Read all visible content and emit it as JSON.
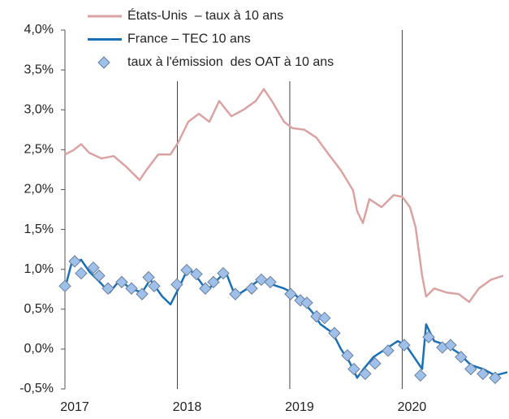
{
  "chart_data": {
    "type": "line",
    "xlim": [
      2017,
      2020.95
    ],
    "xticks": [
      2017,
      2018,
      2019,
      2020
    ],
    "ylim": [
      -0.5,
      4.0
    ],
    "yticks": [
      {
        "value": -0.5,
        "label": "-0,5%"
      },
      {
        "value": 0.0,
        "label": "0,0%"
      },
      {
        "value": 0.5,
        "label": "0,5%"
      },
      {
        "value": 1.0,
        "label": "1,0%"
      },
      {
        "value": 1.5,
        "label": "1,5%"
      },
      {
        "value": 2.0,
        "label": "2,0%"
      },
      {
        "value": 2.5,
        "label": "2,5%"
      },
      {
        "value": 3.0,
        "label": "3,0%"
      },
      {
        "value": 3.5,
        "label": "3,5%"
      },
      {
        "value": 4.0,
        "label": "4,0%"
      }
    ],
    "grid": "x",
    "legend": "top-left",
    "series": [
      {
        "name": "États-Unis  – taux à 10 ans",
        "color": "#d9a3a3",
        "mode": "line",
        "x": [
          2017.0,
          2017.072,
          2017.144,
          2017.217,
          2017.325,
          2017.433,
          2017.542,
          2017.664,
          2017.722,
          2017.83,
          2017.939,
          2018.011,
          2018.097,
          2018.191,
          2018.285,
          2018.372,
          2018.48,
          2018.588,
          2018.697,
          2018.769,
          2018.841,
          2018.949,
          2019.022,
          2019.13,
          2019.238,
          2019.347,
          2019.455,
          2019.563,
          2019.599,
          2019.65,
          2019.708,
          2019.816,
          2019.924,
          2020.0,
          2020.069,
          2020.119,
          2020.177,
          2020.213,
          2020.285,
          2020.393,
          2020.502,
          2020.596,
          2020.682,
          2020.791,
          2020.899
        ],
        "values": [
          2.44,
          2.49,
          2.57,
          2.46,
          2.39,
          2.42,
          2.29,
          2.12,
          2.24,
          2.44,
          2.44,
          2.6,
          2.85,
          2.95,
          2.85,
          3.11,
          2.92,
          3.0,
          3.11,
          3.26,
          3.11,
          2.85,
          2.77,
          2.75,
          2.65,
          2.44,
          2.24,
          1.99,
          1.73,
          1.58,
          1.88,
          1.78,
          1.93,
          1.91,
          1.78,
          1.53,
          0.92,
          0.66,
          0.76,
          0.71,
          0.69,
          0.59,
          0.76,
          0.87,
          0.92
        ]
      },
      {
        "name": "France – TEC 10 ans",
        "color": "#1b6fb5",
        "mode": "line",
        "x": [
          2017.0,
          2017.058,
          2017.144,
          2017.217,
          2017.289,
          2017.397,
          2017.491,
          2017.578,
          2017.686,
          2017.758,
          2017.866,
          2017.939,
          2018.011,
          2018.097,
          2018.191,
          2018.264,
          2018.357,
          2018.43,
          2018.516,
          2018.625,
          2018.733,
          2018.841,
          2018.949,
          2019.022,
          2019.108,
          2019.202,
          2019.274,
          2019.383,
          2019.455,
          2019.527,
          2019.599,
          2019.657,
          2019.744,
          2019.852,
          2019.96,
          2020.032,
          2020.105,
          2020.177,
          2020.213,
          2020.285,
          2020.393,
          2020.502,
          2020.61,
          2020.718,
          2020.827,
          2020.935
        ],
        "values": [
          0.76,
          1.07,
          1.12,
          0.97,
          0.87,
          0.71,
          0.87,
          0.76,
          0.71,
          0.87,
          0.66,
          0.56,
          0.76,
          1.02,
          0.87,
          0.73,
          0.87,
          0.97,
          0.66,
          0.76,
          0.87,
          0.81,
          0.76,
          0.71,
          0.61,
          0.46,
          0.31,
          0.2,
          0.0,
          -0.15,
          -0.36,
          -0.25,
          -0.1,
          0.0,
          0.1,
          0.05,
          -0.1,
          -0.25,
          0.31,
          0.1,
          0.05,
          -0.05,
          -0.2,
          -0.25,
          -0.33,
          -0.29
        ]
      },
      {
        "name": "taux à l'émission  des OAT à 10 ans",
        "color": "#9ec0ea",
        "mode": "markers",
        "x": [
          2017.0,
          2017.087,
          2017.144,
          2017.253,
          2017.303,
          2017.383,
          2017.505,
          2017.592,
          2017.686,
          2017.744,
          2017.794,
          2017.996,
          2018.083,
          2018.17,
          2018.249,
          2018.321,
          2018.408,
          2018.516,
          2018.661,
          2018.747,
          2018.827,
          2019.007,
          2019.094,
          2019.152,
          2019.238,
          2019.31,
          2019.397,
          2019.513,
          2019.57,
          2019.671,
          2019.758,
          2019.874,
          2020.018,
          2020.162,
          2020.235,
          2020.357,
          2020.43,
          2020.523,
          2020.61,
          2020.718,
          2020.827
        ],
        "values": [
          0.79,
          1.1,
          0.95,
          1.02,
          0.92,
          0.76,
          0.84,
          0.76,
          0.69,
          0.9,
          0.79,
          0.81,
          0.99,
          0.94,
          0.76,
          0.84,
          0.95,
          0.69,
          0.76,
          0.87,
          0.84,
          0.69,
          0.61,
          0.58,
          0.41,
          0.39,
          0.2,
          -0.08,
          -0.25,
          -0.31,
          -0.18,
          -0.02,
          0.05,
          -0.33,
          0.15,
          0.02,
          0.05,
          -0.1,
          -0.25,
          -0.31,
          -0.36
        ]
      }
    ]
  }
}
